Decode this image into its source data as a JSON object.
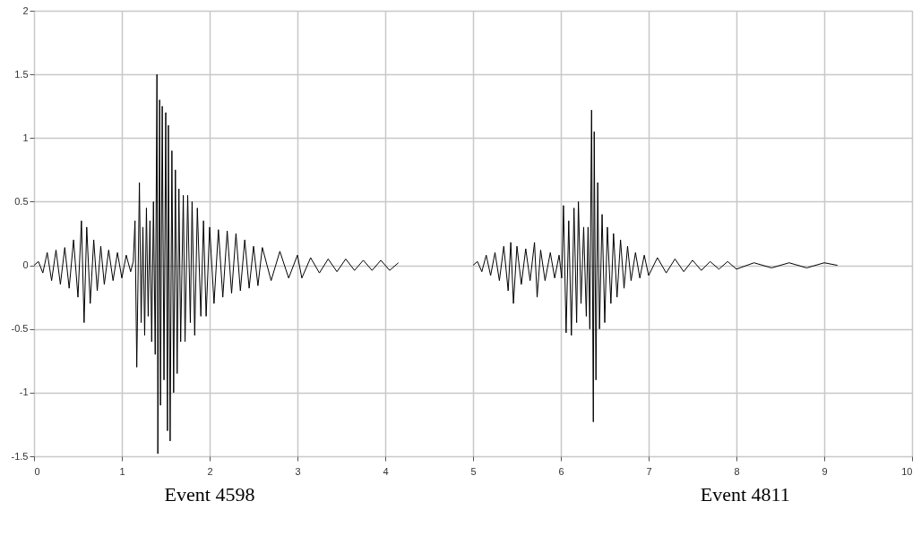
{
  "chart_data": {
    "type": "line",
    "series": [
      {
        "color": "#000000",
        "x": [
          0,
          0.05,
          0.1,
          0.15,
          0.2,
          0.25,
          0.3,
          0.35,
          0.4,
          0.45,
          0.5,
          0.54,
          0.57,
          0.6,
          0.64,
          0.68,
          0.72,
          0.76,
          0.8,
          0.85,
          0.9,
          0.95,
          1.0,
          1.05,
          1.1,
          1.13,
          1.15,
          1.17,
          1.2,
          1.22,
          1.24,
          1.26,
          1.28,
          1.3,
          1.32,
          1.34,
          1.36,
          1.38,
          1.4,
          1.41,
          1.43,
          1.44,
          1.46,
          1.48,
          1.5,
          1.52,
          1.53,
          1.55,
          1.57,
          1.59,
          1.61,
          1.63,
          1.65,
          1.67,
          1.7,
          1.72,
          1.75,
          1.78,
          1.8,
          1.83,
          1.86,
          1.9,
          1.93,
          1.96,
          2.0,
          2.05,
          2.1,
          2.15,
          2.2,
          2.25,
          2.3,
          2.35,
          2.4,
          2.45,
          2.5,
          2.55,
          2.6,
          2.7,
          2.8,
          2.9,
          3.0,
          3.05,
          3.15,
          3.25,
          3.35,
          3.45,
          3.55,
          3.65,
          3.75,
          3.85,
          3.95,
          4.05,
          4.15
        ],
        "values": [
          0,
          0.03,
          -0.06,
          0.1,
          -0.12,
          0.12,
          -0.15,
          0.14,
          -0.18,
          0.2,
          -0.25,
          0.35,
          -0.45,
          0.3,
          -0.3,
          0.2,
          -0.2,
          0.15,
          -0.15,
          0.12,
          -0.12,
          0.1,
          -0.1,
          0.08,
          -0.05,
          0.03,
          0.35,
          -0.8,
          0.65,
          -0.45,
          0.3,
          -0.55,
          0.45,
          -0.4,
          0.35,
          -0.6,
          0.5,
          -0.7,
          1.5,
          -1.48,
          1.3,
          -1.1,
          1.25,
          -0.9,
          1.2,
          -1.3,
          1.1,
          -1.38,
          0.9,
          -1.0,
          0.75,
          -0.85,
          0.6,
          -0.6,
          0.55,
          -0.6,
          0.55,
          -0.45,
          0.5,
          -0.55,
          0.45,
          -0.4,
          0.35,
          -0.4,
          0.3,
          -0.3,
          0.28,
          -0.25,
          0.27,
          -0.22,
          0.25,
          -0.2,
          0.2,
          -0.18,
          0.15,
          -0.16,
          0.14,
          -0.12,
          0.11,
          -0.1,
          0.08,
          -0.1,
          0.06,
          -0.06,
          0.05,
          -0.05,
          0.05,
          -0.04,
          0.04,
          -0.04,
          0.04,
          -0.04,
          0.02
        ]
      },
      {
        "color": "#000000",
        "x": [
          5.0,
          5.05,
          5.1,
          5.15,
          5.2,
          5.25,
          5.3,
          5.35,
          5.4,
          5.43,
          5.46,
          5.5,
          5.55,
          5.6,
          5.65,
          5.7,
          5.73,
          5.77,
          5.82,
          5.88,
          5.93,
          5.98,
          6.01,
          6.03,
          6.06,
          6.09,
          6.12,
          6.15,
          6.18,
          6.2,
          6.23,
          6.26,
          6.29,
          6.31,
          6.33,
          6.35,
          6.37,
          6.38,
          6.4,
          6.42,
          6.44,
          6.47,
          6.5,
          6.53,
          6.57,
          6.6,
          6.64,
          6.68,
          6.72,
          6.76,
          6.8,
          6.85,
          6.9,
          6.95,
          7.0,
          7.1,
          7.2,
          7.3,
          7.4,
          7.5,
          7.6,
          7.7,
          7.8,
          7.9,
          8.0,
          8.2,
          8.4,
          8.6,
          8.8,
          9.0,
          9.15
        ],
        "values": [
          0,
          0.03,
          -0.05,
          0.08,
          -0.08,
          0.1,
          -0.12,
          0.15,
          -0.2,
          0.18,
          -0.3,
          0.15,
          -0.15,
          0.13,
          -0.12,
          0.18,
          -0.25,
          0.12,
          -0.12,
          0.1,
          -0.1,
          0.08,
          -0.1,
          0.47,
          -0.53,
          0.35,
          -0.55,
          0.45,
          -0.45,
          0.5,
          -0.3,
          0.3,
          -0.4,
          0.3,
          -0.5,
          1.22,
          -1.23,
          1.05,
          -0.9,
          0.65,
          -0.5,
          0.4,
          -0.45,
          0.3,
          -0.3,
          0.25,
          -0.25,
          0.2,
          -0.18,
          0.15,
          -0.12,
          0.1,
          -0.1,
          0.08,
          -0.08,
          0.06,
          -0.06,
          0.05,
          -0.05,
          0.04,
          -0.04,
          0.03,
          -0.03,
          0.03,
          -0.03,
          0.02,
          -0.02,
          0.02,
          -0.02,
          0.02,
          0
        ]
      }
    ],
    "xlim": [
      0,
      10
    ],
    "xticks": [
      0,
      1,
      2,
      3,
      4,
      5,
      6,
      7,
      8,
      9,
      10
    ],
    "ylim": [
      -1.5,
      2
    ],
    "yticks": [
      -1.5,
      -1,
      -0.5,
      0,
      0.5,
      1,
      1.5,
      2
    ],
    "grid": true,
    "marker": "none",
    "line_style": "solid",
    "annotations": [
      "Event 4598",
      "Event 4811"
    ]
  }
}
